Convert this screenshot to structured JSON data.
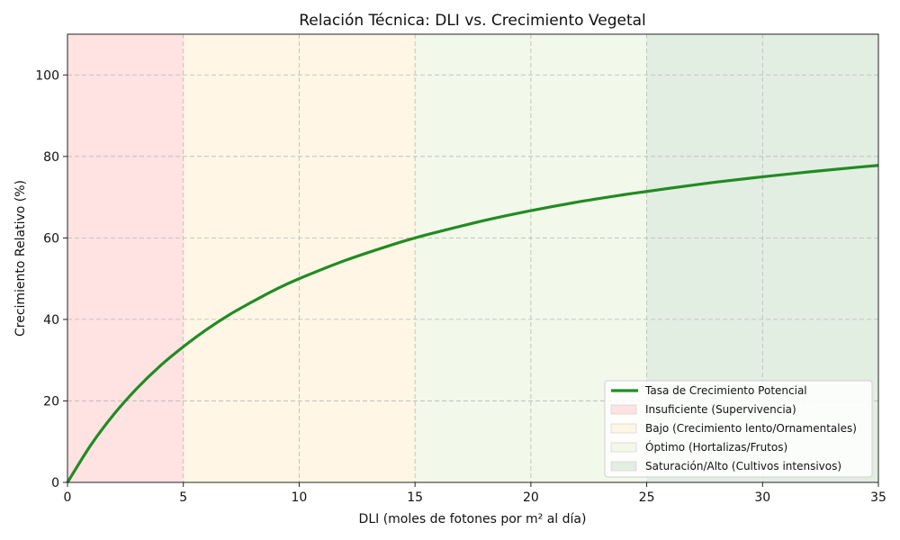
{
  "chart_data": {
    "type": "line",
    "title": "Relación Técnica: DLI vs. Crecimiento Vegetal",
    "xlabel": "DLI (moles de fotones por m² al día)",
    "ylabel": "Crecimiento Relativo (%)",
    "xlim": [
      0,
      35
    ],
    "ylim": [
      0,
      110
    ],
    "xticks": [
      0,
      5,
      10,
      15,
      20,
      25,
      30,
      35
    ],
    "yticks": [
      0,
      20,
      40,
      60,
      80,
      100
    ],
    "grid": true,
    "legend_position": "lower-right",
    "series": [
      {
        "name": "Tasa de Crecimiento Potencial",
        "color": "#228b22",
        "x": [
          0,
          1,
          2,
          3,
          4,
          5,
          6,
          7,
          8,
          9,
          10,
          12,
          14,
          15,
          16,
          18,
          20,
          22,
          24,
          25,
          26,
          28,
          30,
          32,
          34,
          35
        ],
        "y": [
          0,
          9.1,
          16.7,
          23.1,
          28.6,
          33.3,
          37.5,
          41.2,
          44.4,
          47.4,
          50.0,
          54.5,
          58.3,
          60.0,
          61.5,
          64.3,
          66.7,
          68.8,
          70.6,
          71.4,
          72.2,
          73.7,
          75.0,
          76.2,
          77.3,
          77.8
        ]
      }
    ],
    "bands": [
      {
        "name": "Insuficiente (Supervivencia)",
        "from": 0,
        "to": 5,
        "color": "#ffe2e2"
      },
      {
        "name": "Bajo (Crecimiento lento/Ornamentales)",
        "from": 5,
        "to": 15,
        "color": "#fff6e6"
      },
      {
        "name": "Óptimo (Hortalizas/Frutos)",
        "from": 15,
        "to": 25,
        "color": "#f2f8ea"
      },
      {
        "name": "Saturación/Alto (Cultivos intensivos)",
        "from": 25,
        "to": 35,
        "color": "#e3eee3"
      }
    ]
  }
}
